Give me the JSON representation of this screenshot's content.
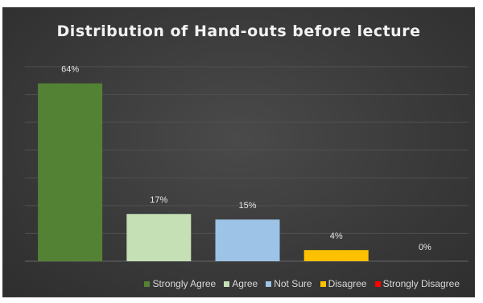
{
  "chart_data": {
    "type": "bar",
    "title": "Distribution of Hand-outs before lecture",
    "categories": [
      "Strongly Agree",
      "Agree",
      "Not Sure",
      "Disagree",
      "Strongly Disagree"
    ],
    "values": [
      64,
      17,
      15,
      4,
      0
    ],
    "value_labels": [
      "64%",
      "17%",
      "15%",
      "4%",
      "0%"
    ],
    "colors": [
      "#548235",
      "#c5e0b4",
      "#9dc3e6",
      "#ffc000",
      "#ff0000"
    ],
    "ylim": [
      0,
      70
    ],
    "grid": true,
    "legend_position": "bottom"
  }
}
